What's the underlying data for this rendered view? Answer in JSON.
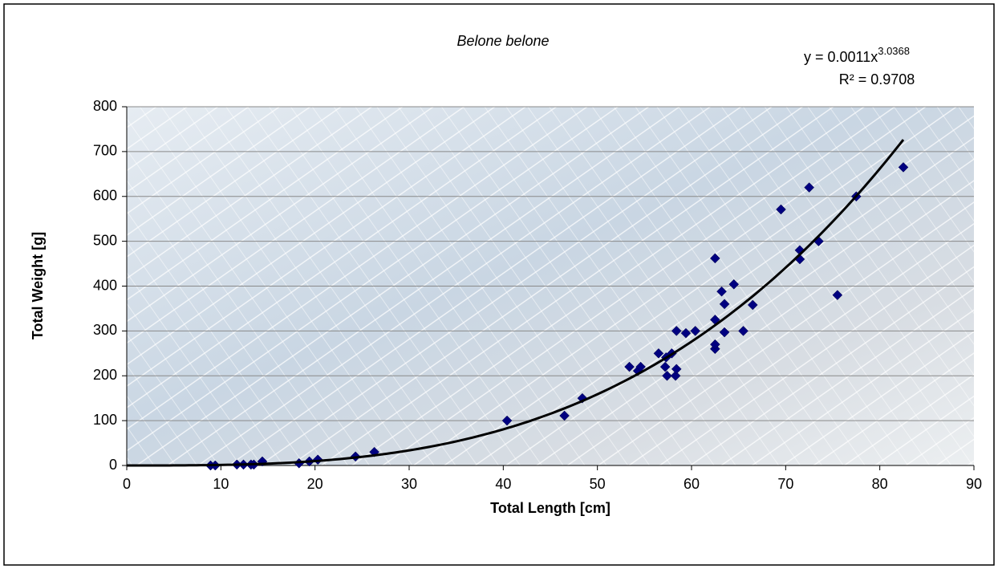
{
  "chart_data": {
    "type": "scatter",
    "title": "Belone belone",
    "x_label": "Total Length [cm]",
    "y_label": "Total Weight [g]",
    "xlim": [
      0,
      90
    ],
    "xticks": [
      0,
      10,
      20,
      30,
      40,
      50,
      60,
      70,
      80,
      90
    ],
    "ylim": [
      0,
      800
    ],
    "yticks": [
      0,
      100,
      200,
      300,
      400,
      500,
      600,
      700,
      800
    ],
    "grid": true,
    "series": [
      {
        "color": "#000080",
        "x": [
          8.9,
          9.4,
          11.7,
          12.4,
          13.2,
          13.5,
          14.4,
          18.3,
          19.4,
          20.3,
          24.3,
          26.3,
          40.4,
          46.5,
          48.4,
          53.4,
          54.3,
          54.6,
          56.5,
          57.2,
          57.3,
          57.4,
          58.3,
          57.9,
          58.4,
          58.4,
          59.4,
          60.4,
          62.5,
          62.5,
          62.5,
          62.5,
          63.2,
          63.5,
          63.5,
          64.5,
          65.5,
          66.5,
          69.5,
          71.5,
          71.5,
          72.5,
          73.5,
          75.5,
          77.5,
          82.5
        ],
        "values": [
          0,
          0,
          2,
          2,
          2,
          2,
          9,
          5,
          9,
          13,
          20,
          30,
          100,
          111,
          150,
          220,
          211,
          220,
          250,
          220,
          241,
          200,
          200,
          250,
          300,
          215,
          295,
          300,
          260,
          270,
          325,
          462,
          388,
          360,
          297,
          404,
          300,
          358,
          571,
          480,
          460,
          620,
          500,
          380,
          600,
          665
        ]
      }
    ],
    "trendline": {
      "a": 0.0011,
      "b": 3.0368,
      "x_range": [
        0,
        82.5
      ],
      "color": "#000000",
      "equation": "y = 0.0011x",
      "exponent": "3.0368",
      "r_squared": "R² = 0.9708"
    }
  }
}
